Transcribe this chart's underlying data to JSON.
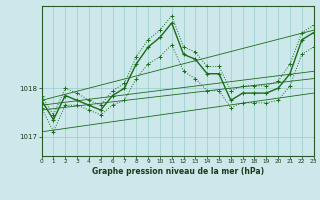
{
  "background_color": "#cce8ea",
  "grid_color": "#99cccc",
  "line_color": "#1a6b1a",
  "title": "Graphe pression niveau de la mer (hPa)",
  "xlim": [
    0,
    23
  ],
  "ylim": [
    1016.6,
    1019.7
  ],
  "yticks": [
    1017,
    1018
  ],
  "xticks": [
    0,
    1,
    2,
    3,
    4,
    5,
    6,
    7,
    8,
    9,
    10,
    11,
    12,
    13,
    14,
    15,
    16,
    17,
    18,
    19,
    20,
    21,
    22,
    23
  ],
  "series": {
    "instant": {
      "x": [
        0,
        1,
        2,
        3,
        4,
        5,
        6,
        7,
        8,
        9,
        10,
        11,
        12,
        13,
        14,
        15,
        16,
        17,
        18,
        19,
        20,
        21,
        22,
        23
      ],
      "y": [
        1017.75,
        1017.35,
        1017.85,
        1017.75,
        1017.65,
        1017.55,
        1017.85,
        1018.0,
        1018.5,
        1018.85,
        1019.05,
        1019.35,
        1018.7,
        1018.6,
        1018.3,
        1018.3,
        1017.75,
        1017.9,
        1017.9,
        1017.9,
        1018.0,
        1018.3,
        1019.0,
        1019.15
      ]
    },
    "min": {
      "x": [
        0,
        1,
        2,
        3,
        4,
        5,
        6,
        7,
        8,
        9,
        10,
        11,
        12,
        13,
        14,
        15,
        16,
        17,
        18,
        19,
        20,
        21,
        22,
        23
      ],
      "y": [
        1017.6,
        1017.1,
        1017.65,
        1017.65,
        1017.55,
        1017.45,
        1017.65,
        1017.75,
        1018.2,
        1018.5,
        1018.65,
        1018.9,
        1018.35,
        1018.2,
        1017.95,
        1017.95,
        1017.6,
        1017.7,
        1017.7,
        1017.7,
        1017.75,
        1018.05,
        1018.7,
        1018.85
      ]
    },
    "max": {
      "x": [
        0,
        1,
        2,
        3,
        4,
        5,
        6,
        7,
        8,
        9,
        10,
        11,
        12,
        13,
        14,
        15,
        16,
        17,
        18,
        19,
        20,
        21,
        22,
        23
      ],
      "y": [
        1017.85,
        1017.45,
        1018.0,
        1017.9,
        1017.75,
        1017.65,
        1017.95,
        1018.1,
        1018.65,
        1019.0,
        1019.2,
        1019.5,
        1018.85,
        1018.75,
        1018.45,
        1018.45,
        1017.95,
        1018.05,
        1018.05,
        1018.05,
        1018.15,
        1018.5,
        1019.15,
        1019.3
      ]
    },
    "trend_low": {
      "x": [
        0,
        23
      ],
      "y": [
        1017.1,
        1017.9
      ]
    },
    "trend_mid1": {
      "x": [
        0,
        23
      ],
      "y": [
        1017.55,
        1018.2
      ]
    },
    "trend_mid2": {
      "x": [
        0,
        23
      ],
      "y": [
        1017.65,
        1018.35
      ]
    },
    "trend_high": {
      "x": [
        0,
        23
      ],
      "y": [
        1017.75,
        1019.2
      ]
    }
  }
}
